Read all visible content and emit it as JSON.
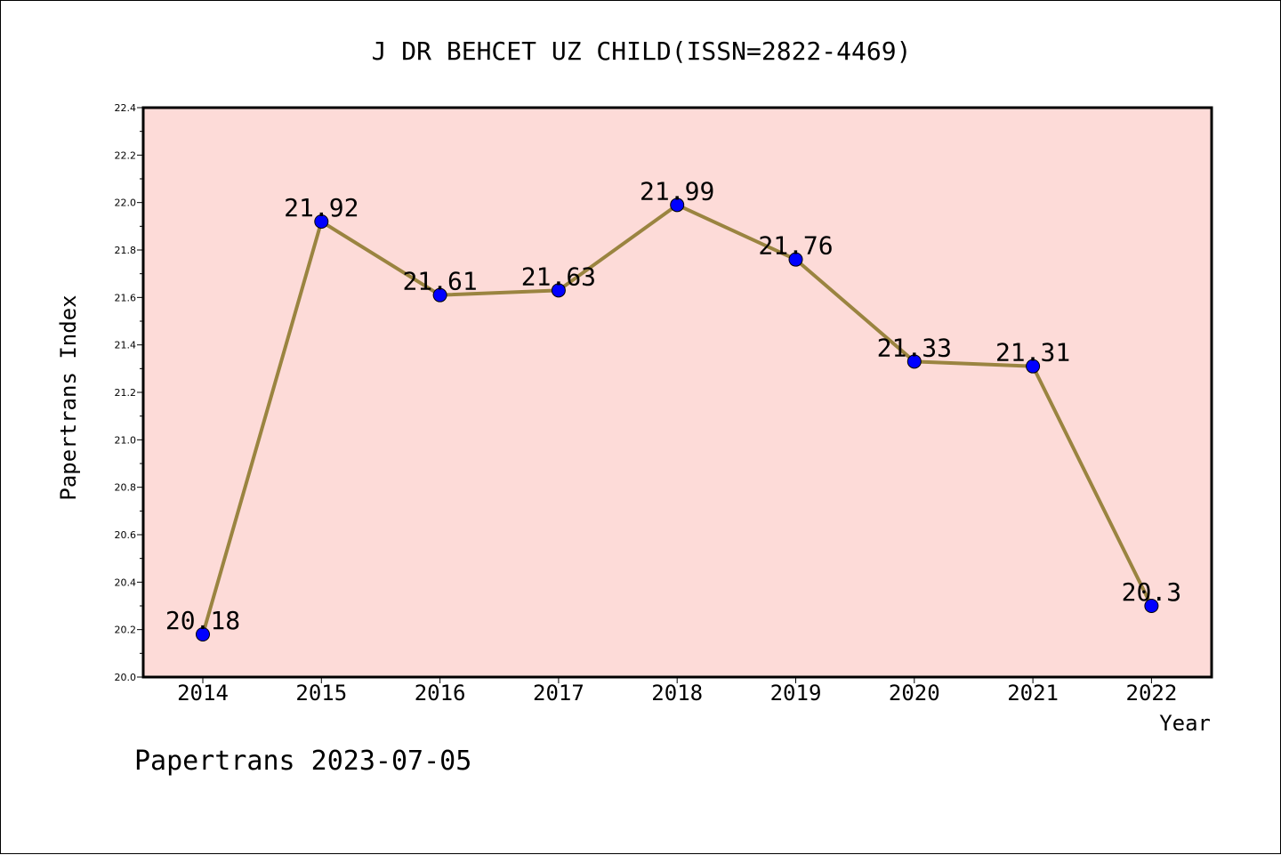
{
  "chart_data": {
    "type": "line",
    "title": "J DR BEHCET UZ CHILD(ISSN=2822-4469)",
    "xlabel": "Year",
    "ylabel": "Papertrans Index",
    "categories": [
      "2014",
      "2015",
      "2016",
      "2017",
      "2018",
      "2019",
      "2020",
      "2021",
      "2022"
    ],
    "series": [
      {
        "values": [
          20.18,
          21.92,
          21.61,
          21.63,
          21.99,
          21.76,
          21.33,
          21.31,
          20.3
        ],
        "labels": [
          "20.18",
          "21.92",
          "21.61",
          "21.63",
          "21.99",
          "21.76",
          "21.33",
          "21.31",
          "20.3"
        ]
      }
    ],
    "ylim": [
      20.0,
      22.4
    ],
    "yticks": [
      "20.0",
      "20.2",
      "20.4",
      "20.6",
      "20.8",
      "21.0",
      "21.2",
      "21.4",
      "21.6",
      "21.8",
      "22.0",
      "22.2",
      "22.4"
    ],
    "grid": false,
    "colors": {
      "plot_background": "#fddbd8",
      "line": "#9a8440",
      "marker": "#0000ff"
    }
  },
  "footer": "Papertrans 2023-07-05"
}
